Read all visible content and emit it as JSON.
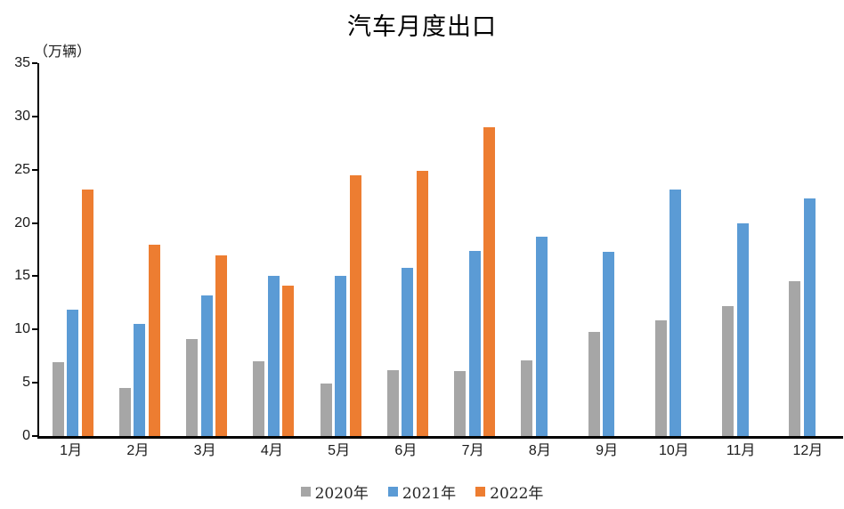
{
  "chart_data": {
    "type": "bar",
    "title": "汽车月度出口",
    "unit_label": "（万辆）",
    "categories": [
      "1月",
      "2月",
      "3月",
      "4月",
      "5月",
      "6月",
      "7月",
      "8月",
      "9月",
      "10月",
      "11月",
      "12月"
    ],
    "series": [
      {
        "name": "2020年",
        "color": "#A6A6A6",
        "values": [
          6.9,
          4.5,
          9.1,
          7.0,
          4.9,
          6.2,
          6.1,
          7.1,
          9.8,
          10.9,
          12.2,
          14.5
        ]
      },
      {
        "name": "2021年",
        "color": "#5B9BD5",
        "values": [
          11.9,
          10.5,
          13.2,
          15.0,
          15.0,
          15.8,
          17.4,
          18.7,
          17.3,
          23.1,
          20.0,
          22.3
        ]
      },
      {
        "name": "2022年",
        "color": "#ED7D31",
        "values": [
          23.1,
          18.0,
          17.0,
          14.1,
          24.5,
          24.9,
          29.0,
          null,
          null,
          null,
          null,
          null
        ]
      }
    ],
    "ylim": [
      0,
      35
    ],
    "ytick_step": 5,
    "grid": false,
    "legend_position": "bottom",
    "axis_color": "#000000",
    "background_color": "#FFFFFF"
  }
}
